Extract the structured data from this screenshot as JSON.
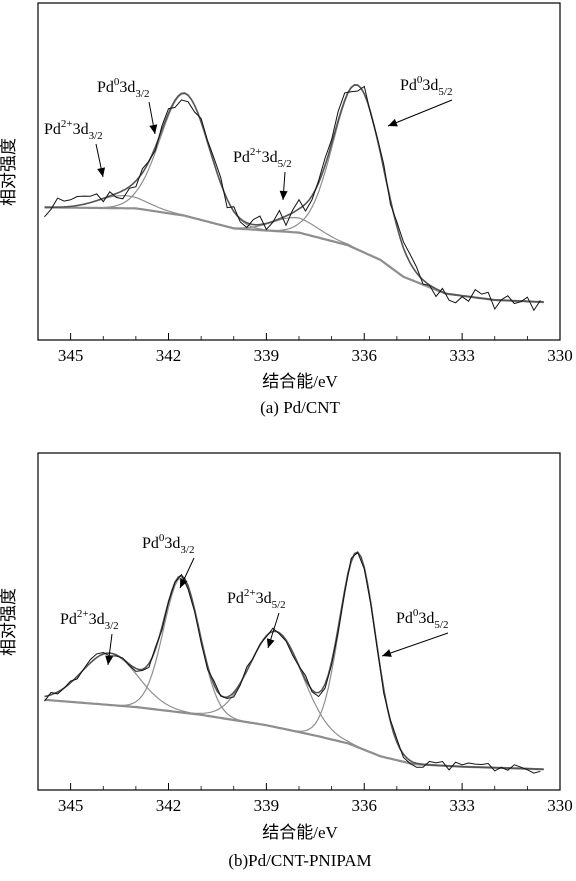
{
  "panels": [
    {
      "id": "a",
      "caption": "(a) Pd/CNT",
      "xlabel": "结合能/eV",
      "ylabel": "相对强度",
      "peaks": [
        {
          "pre": "Pd",
          "sup": "2+",
          "mid": "3d",
          "sub": "3/2"
        },
        {
          "pre": "Pd",
          "sup": "0",
          "mid": "3d",
          "sub": "3/2"
        },
        {
          "pre": "Pd",
          "sup": "2+",
          "mid": "3d",
          "sub": "5/2"
        },
        {
          "pre": "Pd",
          "sup": "0",
          "mid": "3d",
          "sub": "5/2"
        }
      ]
    },
    {
      "id": "b",
      "caption": "(b)Pd/CNT-PNIPAM",
      "xlabel": "结合能/eV",
      "ylabel": "相对强度",
      "peaks": [
        {
          "pre": "Pd",
          "sup": "2+",
          "mid": "3d",
          "sub": "3/2"
        },
        {
          "pre": "Pd",
          "sup": "0",
          "mid": "3d",
          "sub": "3/2"
        },
        {
          "pre": "Pd",
          "sup": "2+",
          "mid": "3d",
          "sub": "5/2"
        },
        {
          "pre": "Pd",
          "sup": "0",
          "mid": "3d",
          "sub": "5/2"
        }
      ]
    }
  ],
  "chart_data": [
    {
      "type": "line",
      "title": "(a) Pd/CNT",
      "xlabel": "结合能/eV",
      "ylabel": "相对强度",
      "xlim": [
        346,
        330
      ],
      "x_reversed": true,
      "xticks": [
        345,
        342,
        339,
        336,
        333,
        330
      ],
      "yticks": [],
      "background": [
        [
          346,
          0.08
        ],
        [
          343,
          0.075
        ],
        [
          341.5,
          0.04
        ],
        [
          340,
          -0.02
        ],
        [
          338,
          -0.04
        ],
        [
          337.5,
          -0.06
        ],
        [
          336.5,
          -0.1
        ],
        [
          335.5,
          -0.17
        ],
        [
          334.8,
          -0.25
        ],
        [
          333.5,
          -0.33
        ],
        [
          332,
          -0.36
        ],
        [
          330.5,
          -0.37
        ]
      ],
      "components": [
        {
          "label": "Pd2+3d3/2",
          "center": 343.4,
          "height": 0.06,
          "width": 0.75
        },
        {
          "label": "Pd0 3d3/2",
          "center": 341.5,
          "height": 0.58,
          "width": 0.75
        },
        {
          "label": "Pd2+3d5/2",
          "center": 338.1,
          "height": 0.07,
          "width": 0.7
        },
        {
          "label": "Pd0 3d5/2",
          "center": 336.2,
          "height": 0.78,
          "width": 0.75
        }
      ],
      "ylim": [
        -0.55,
        1.05
      ]
    },
    {
      "type": "line",
      "title": "(b)Pd/CNT-PNIPAM",
      "xlabel": "结合能/eV",
      "ylabel": "相对强度",
      "xlim": [
        346,
        330
      ],
      "x_reversed": true,
      "xticks": [
        345,
        342,
        339,
        336,
        333,
        330
      ],
      "yticks": [],
      "background": [
        [
          346,
          0.0
        ],
        [
          343,
          -0.03
        ],
        [
          341,
          -0.06
        ],
        [
          339,
          -0.1
        ],
        [
          337.5,
          -0.14
        ],
        [
          336.5,
          -0.17
        ],
        [
          335.5,
          -0.22
        ],
        [
          334.5,
          -0.25
        ],
        [
          333,
          -0.26
        ],
        [
          330.5,
          -0.27
        ]
      ],
      "components": [
        {
          "label": "Pd2+3d3/2",
          "center": 343.8,
          "height": 0.2,
          "width": 0.85
        },
        {
          "label": "Pd0 3d3/2",
          "center": 341.6,
          "height": 0.52,
          "width": 0.55
        },
        {
          "label": "Pd2+3d5/2",
          "center": 338.7,
          "height": 0.37,
          "width": 0.8
        },
        {
          "label": "Pd0 3d5/2",
          "center": 336.2,
          "height": 0.75,
          "width": 0.55
        }
      ],
      "ylim": [
        -0.35,
        0.95
      ]
    }
  ],
  "colors": {
    "raw": "#111111",
    "envelope": "#555555",
    "component": "#8f8f8f",
    "background": "#8a8a8a",
    "axis": "#000000"
  }
}
